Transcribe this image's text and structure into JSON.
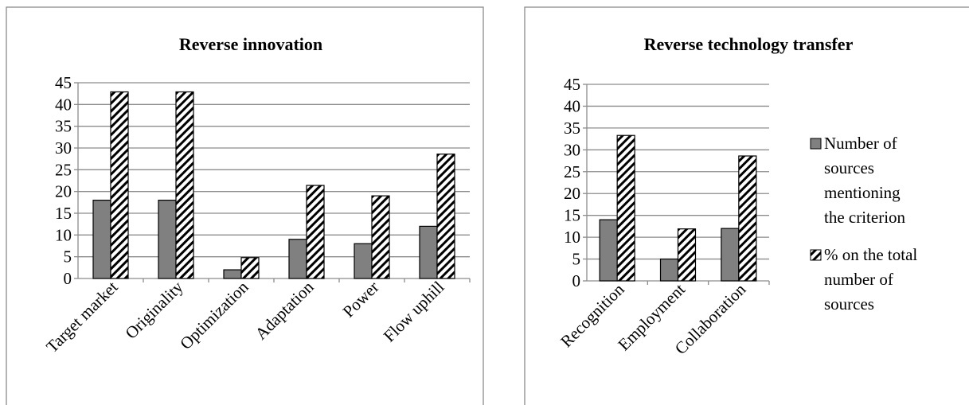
{
  "legend": [
    {
      "lines": [
        "Number of",
        "sources",
        "mentioning",
        "the criterion"
      ]
    },
    {
      "lines": [
        "% on the total",
        "number of",
        "sources"
      ]
    }
  ],
  "chart_data": [
    {
      "type": "bar",
      "title": "Reverse innovation",
      "categories": [
        "Target market",
        "Originality",
        "Optimization",
        "Adaptation",
        "Power",
        "Flow uphill"
      ],
      "ylim": [
        0,
        45
      ],
      "yticks": [
        0,
        5,
        10,
        15,
        20,
        25,
        30,
        35,
        40,
        45
      ],
      "grid": true,
      "series": [
        {
          "name": "Number of sources mentioning the criterion",
          "values": [
            18,
            18,
            2,
            9,
            8,
            12
          ]
        },
        {
          "name": "% on the total number of sources",
          "values": [
            42.9,
            42.9,
            4.8,
            21.4,
            19.0,
            28.6
          ]
        }
      ]
    },
    {
      "type": "bar",
      "title": "Reverse technology transfer",
      "categories": [
        "Recognition",
        "Employment",
        "Collaboration"
      ],
      "ylim": [
        0,
        45
      ],
      "yticks": [
        0,
        5,
        10,
        15,
        20,
        25,
        30,
        35,
        40,
        45
      ],
      "grid": true,
      "legend_position": "right",
      "series": [
        {
          "name": "Number of sources mentioning the criterion",
          "values": [
            14,
            5,
            12
          ]
        },
        {
          "name": "% on the total number of sources",
          "values": [
            33.3,
            11.9,
            28.6
          ]
        }
      ]
    }
  ],
  "colors": {
    "series1": "#808080",
    "series2_hatch": "#000000",
    "grid": "#8c8c8c",
    "border": "#8c8c8c"
  }
}
